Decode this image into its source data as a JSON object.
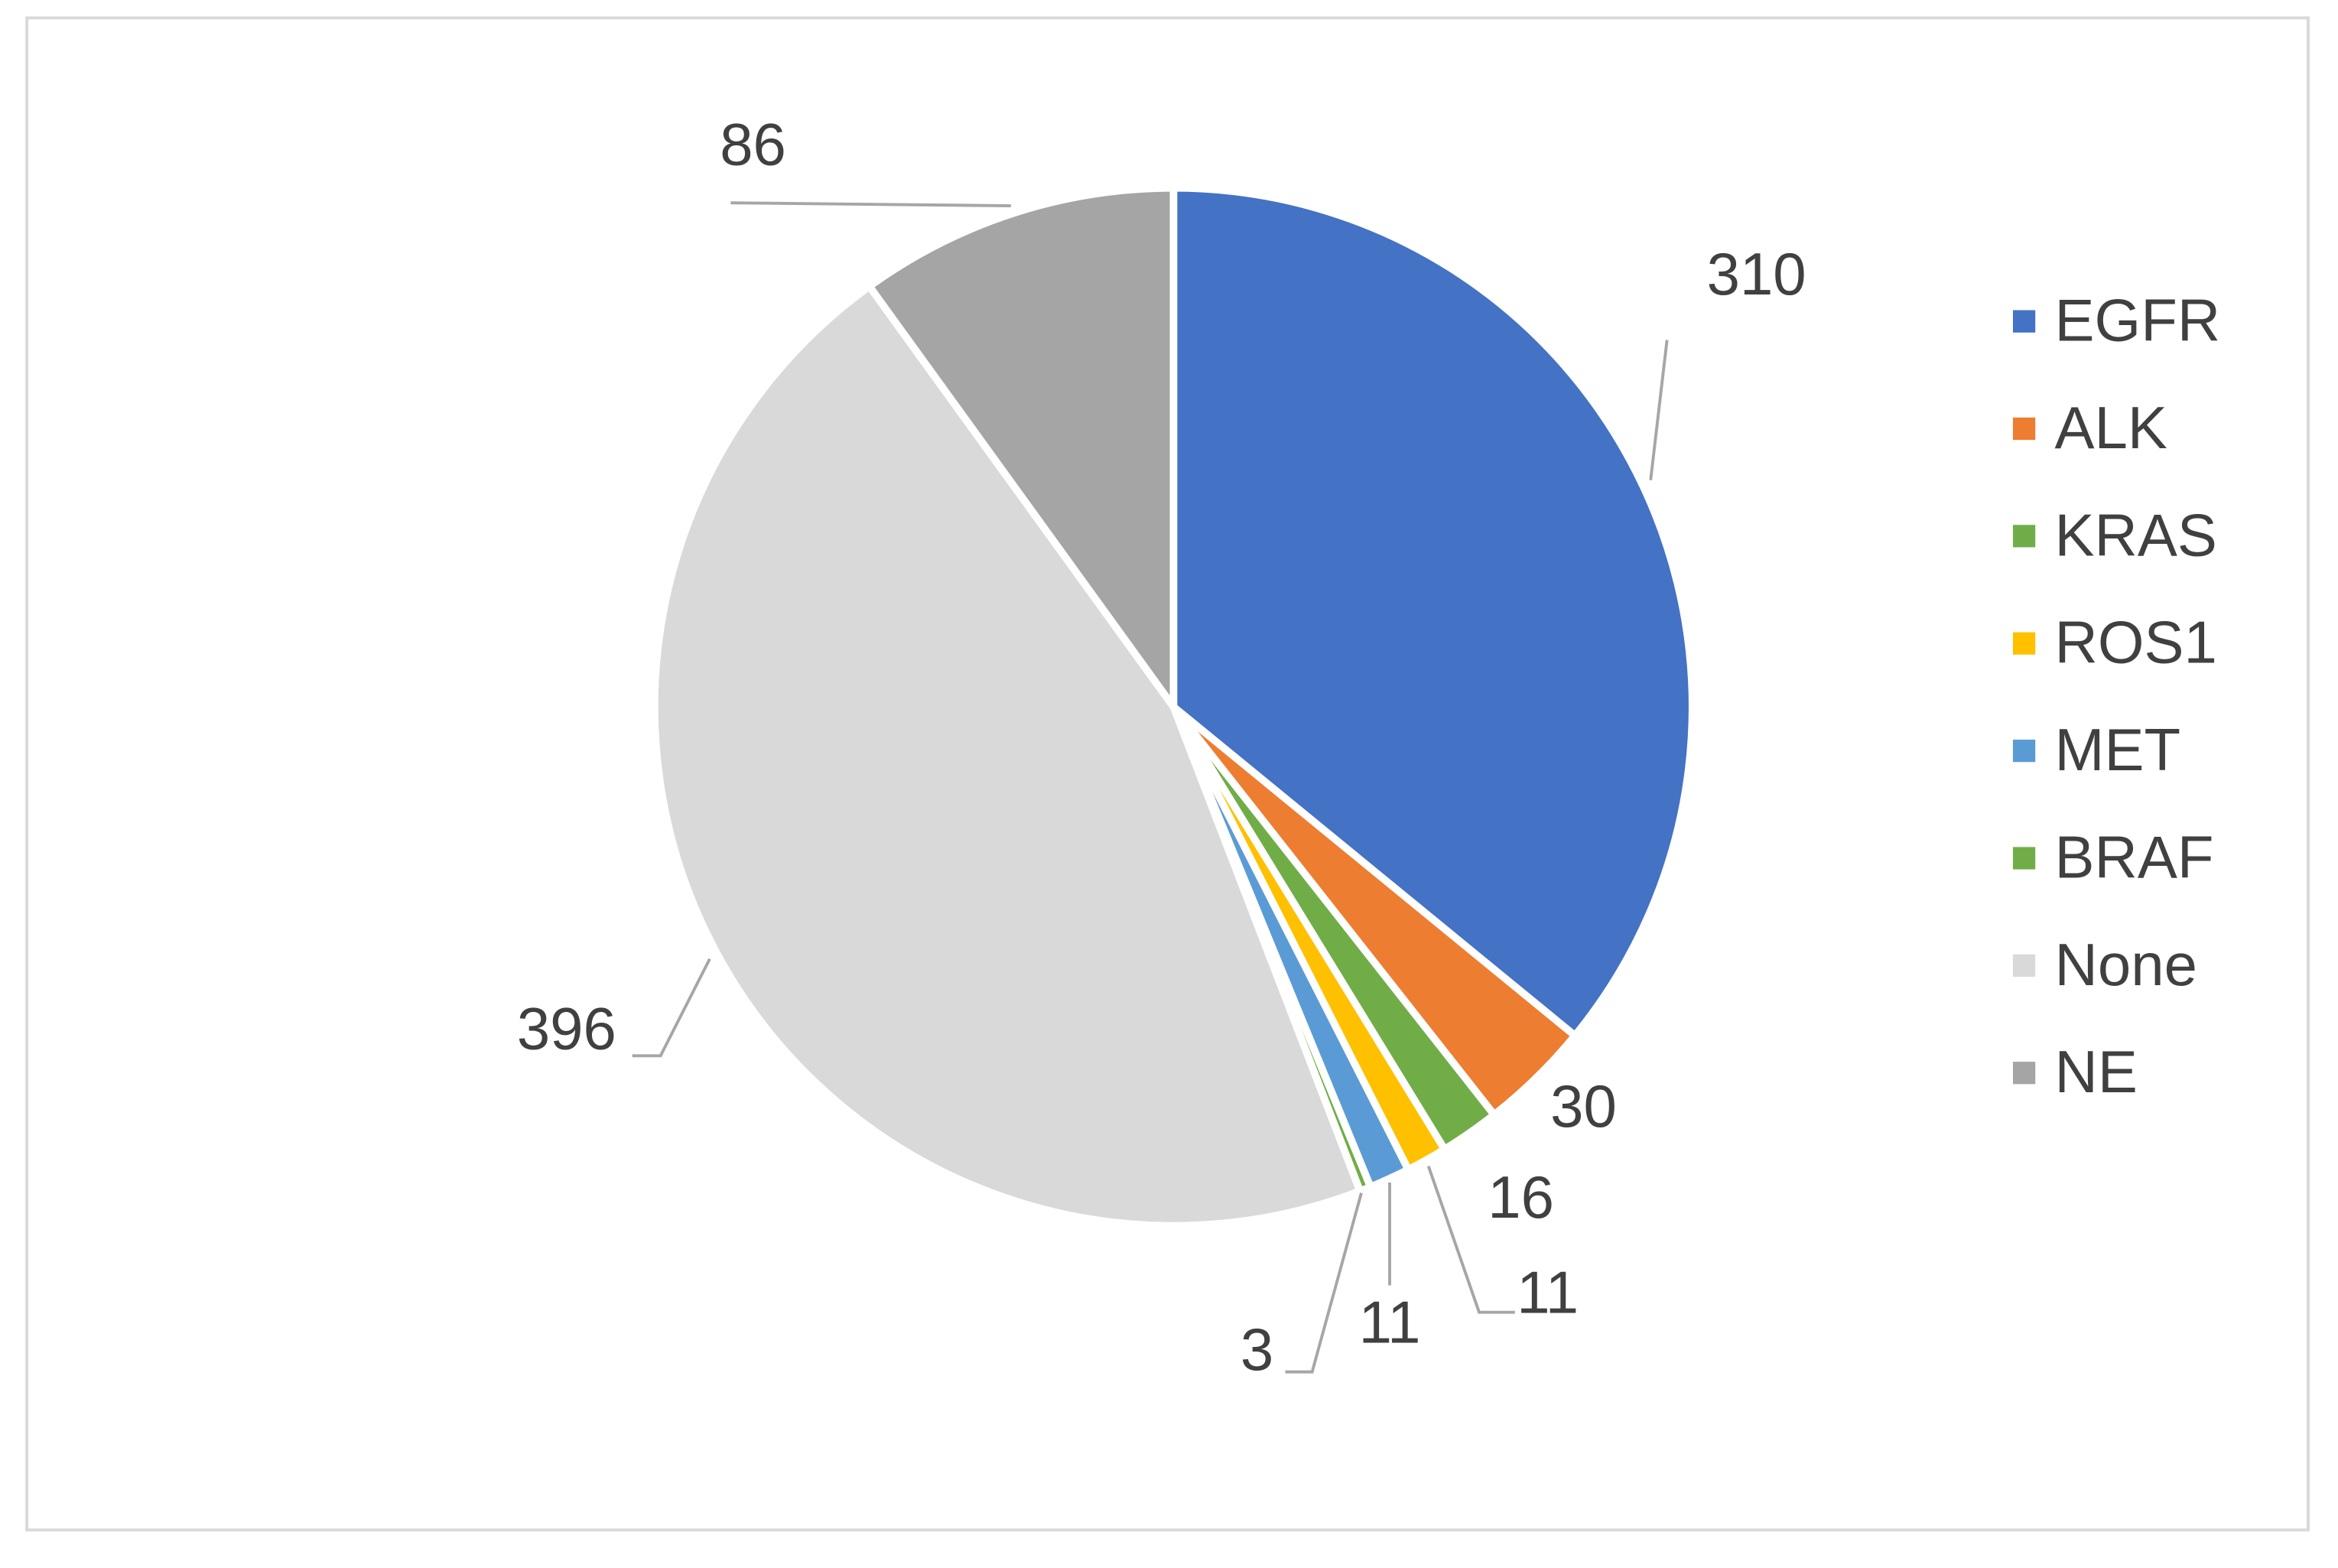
{
  "chart_data": {
    "type": "pie",
    "categories": [
      "EGFR",
      "ALK",
      "KRAS",
      "ROS1",
      "MET",
      "BRAF",
      "None",
      "NE"
    ],
    "values": [
      310,
      30,
      16,
      11,
      11,
      3,
      396,
      86
    ],
    "colors": [
      "#4472c4",
      "#ed7d31",
      "#70ad47",
      "#ffc000",
      "#5b9bd5",
      "#70ad47",
      "#d9d9d9",
      "#a5a5a5"
    ],
    "legend": "right"
  }
}
